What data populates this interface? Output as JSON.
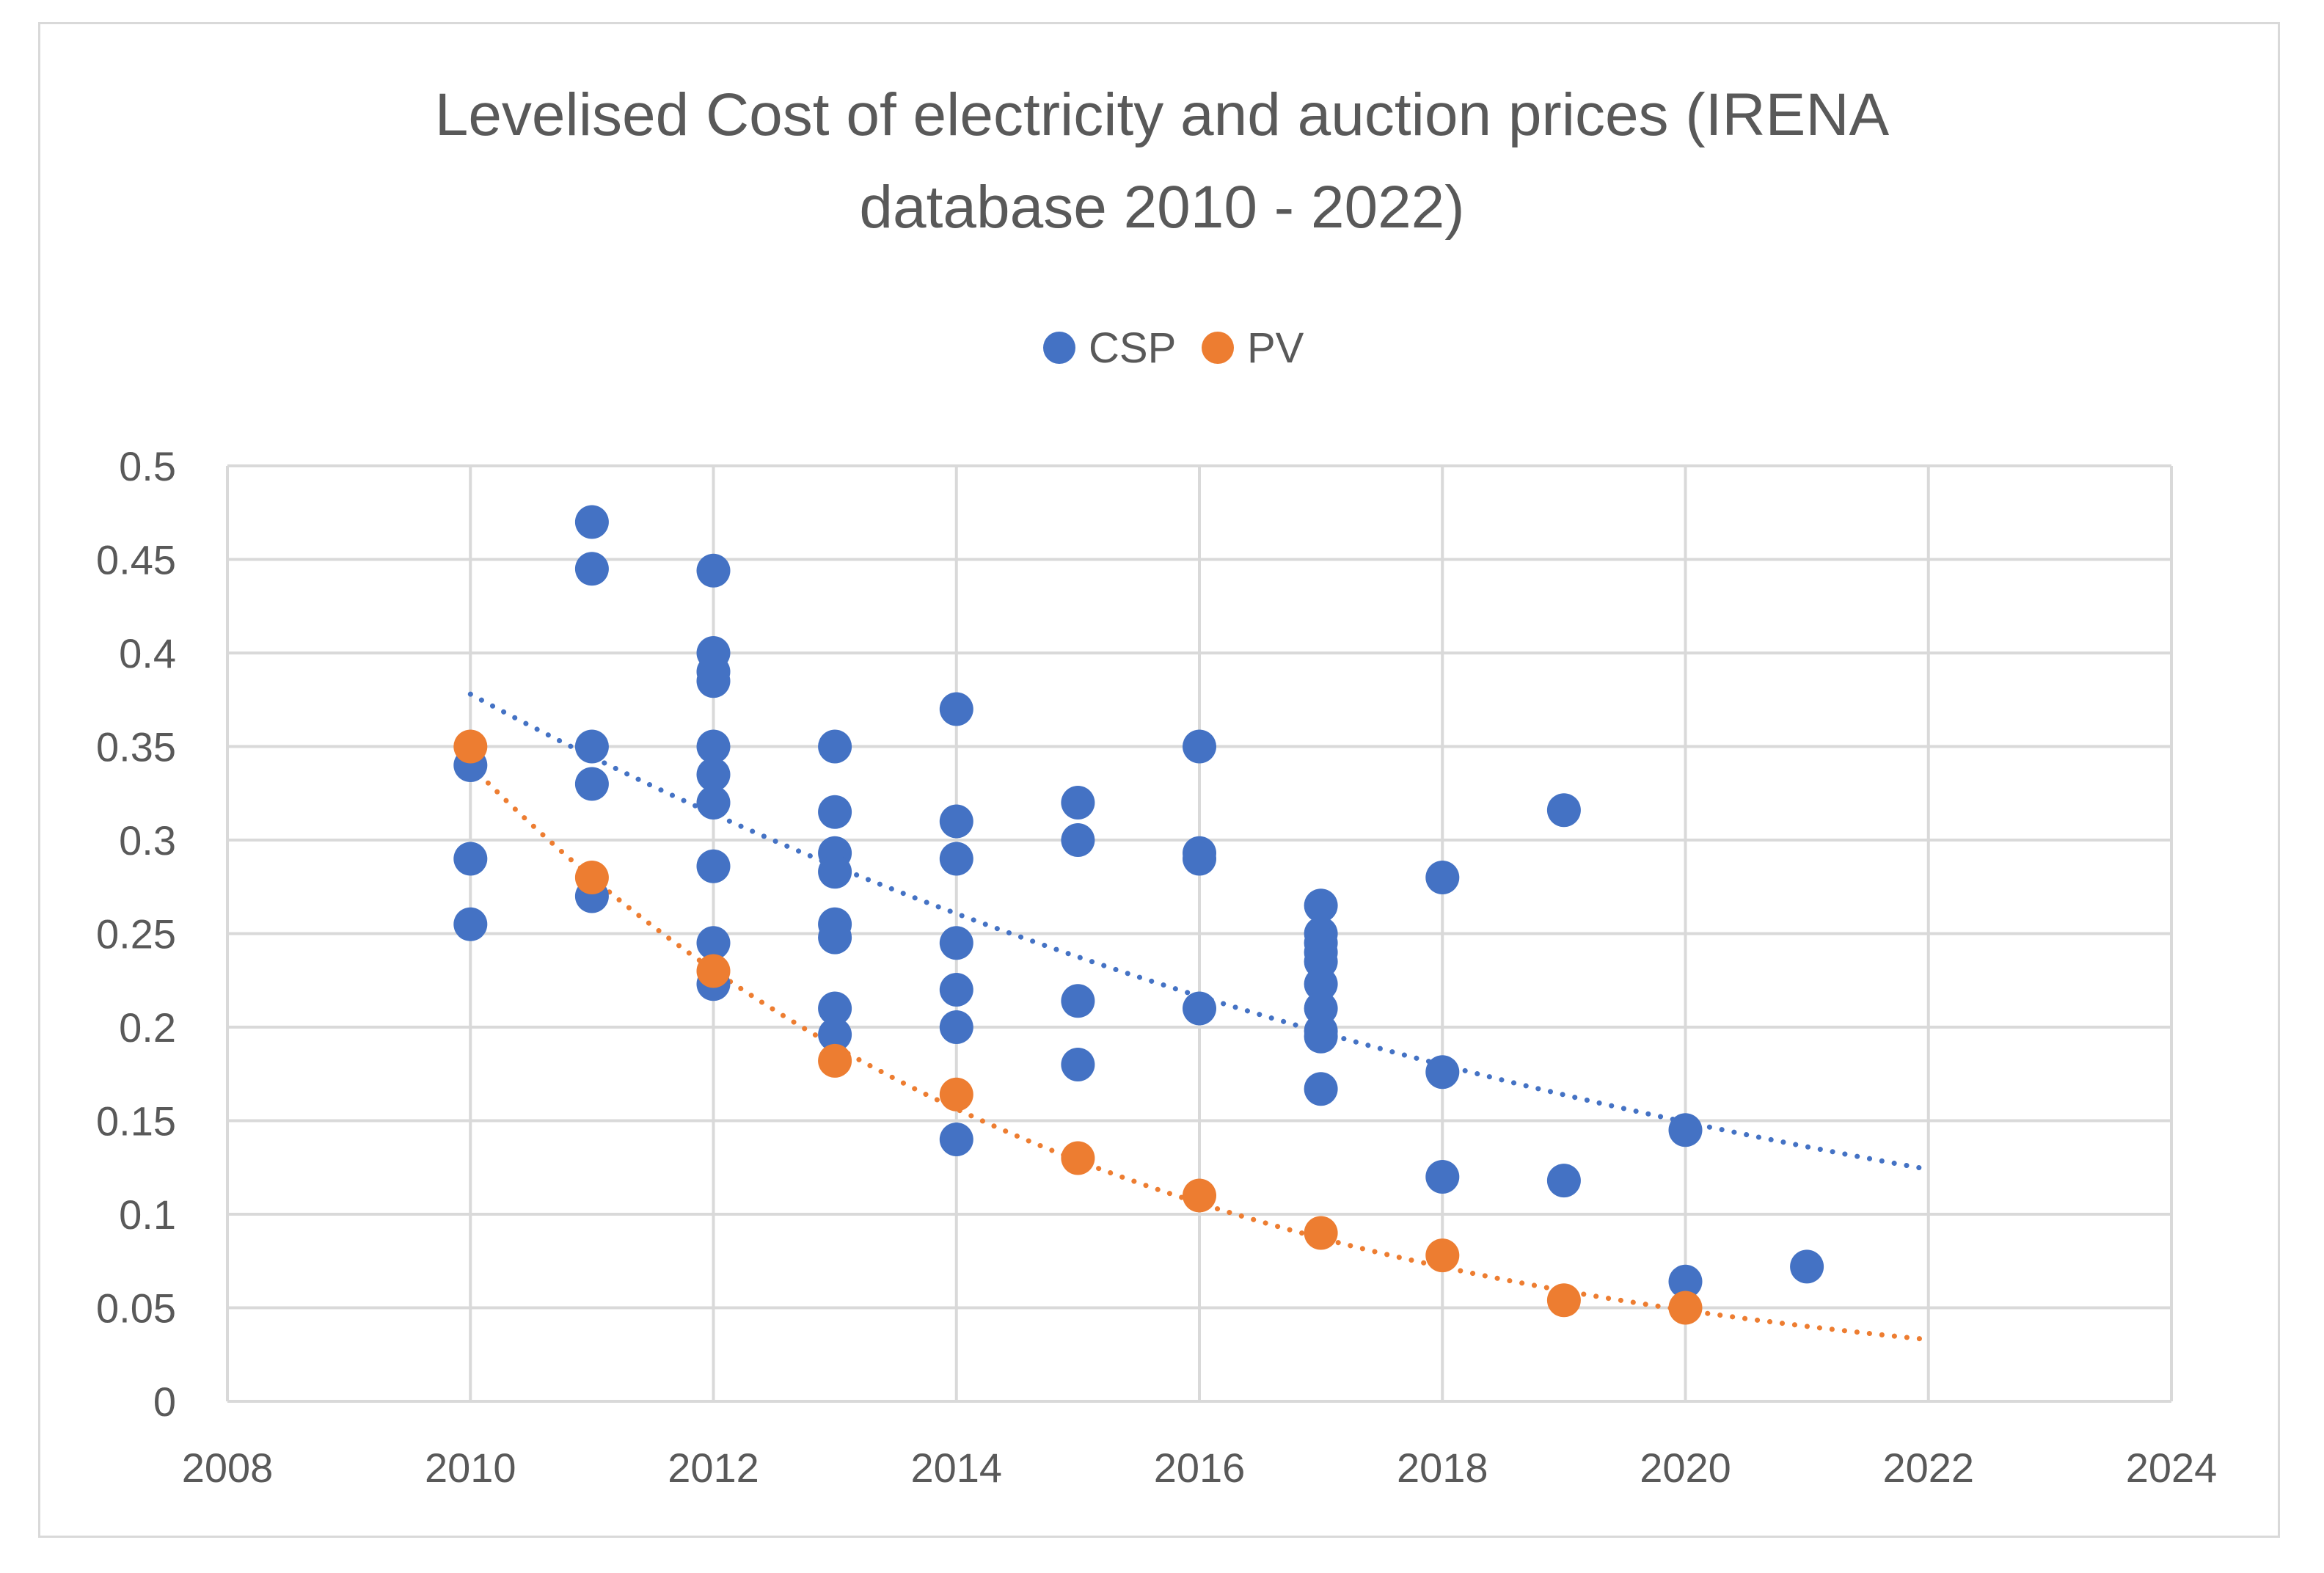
{
  "chart_data": {
    "type": "scatter",
    "title": "Levelised Cost of electricity and auction prices (IRENA database 2010 - 2022)",
    "title_lines": [
      "Levelised Cost of electricity and auction prices (IRENA",
      "database 2010 - 2022)"
    ],
    "xlabel": "",
    "ylabel": "",
    "xlim": [
      2008,
      2024
    ],
    "ylim": [
      0,
      0.5
    ],
    "x_ticks": [
      2008,
      2010,
      2012,
      2014,
      2016,
      2018,
      2020,
      2022,
      2024
    ],
    "y_ticks": [
      0,
      0.05,
      0.1,
      0.15,
      0.2,
      0.25,
      0.3,
      0.35,
      0.4,
      0.45,
      0.5
    ],
    "x_tick_labels": [
      "2008",
      "2010",
      "2012",
      "2014",
      "2016",
      "2018",
      "2020",
      "2022",
      "2024"
    ],
    "y_tick_labels": [
      "0",
      "0.05",
      "0.1",
      "0.15",
      "0.2",
      "0.25",
      "0.3",
      "0.35",
      "0.4",
      "0.45",
      "0.5"
    ],
    "grid": true,
    "legend_position": "top-center",
    "series": [
      {
        "name": "CSP",
        "color": "#4472c4",
        "points": [
          [
            2010,
            0.34
          ],
          [
            2010,
            0.29
          ],
          [
            2010,
            0.255
          ],
          [
            2011,
            0.47
          ],
          [
            2011,
            0.445
          ],
          [
            2011,
            0.35
          ],
          [
            2011,
            0.33
          ],
          [
            2011,
            0.27
          ],
          [
            2012,
            0.444
          ],
          [
            2012,
            0.4
          ],
          [
            2012,
            0.39
          ],
          [
            2012,
            0.385
          ],
          [
            2012,
            0.35
          ],
          [
            2012,
            0.335
          ],
          [
            2012,
            0.32
          ],
          [
            2012,
            0.286
          ],
          [
            2012,
            0.245
          ],
          [
            2012,
            0.223
          ],
          [
            2013,
            0.35
          ],
          [
            2013,
            0.315
          ],
          [
            2013,
            0.293
          ],
          [
            2013,
            0.283
          ],
          [
            2013,
            0.255
          ],
          [
            2013,
            0.248
          ],
          [
            2013,
            0.21
          ],
          [
            2013,
            0.196
          ],
          [
            2014,
            0.37
          ],
          [
            2014,
            0.31
          ],
          [
            2014,
            0.29
          ],
          [
            2014,
            0.245
          ],
          [
            2014,
            0.22
          ],
          [
            2014,
            0.2
          ],
          [
            2014,
            0.14
          ],
          [
            2015,
            0.32
          ],
          [
            2015,
            0.3
          ],
          [
            2015,
            0.214
          ],
          [
            2015,
            0.18
          ],
          [
            2016,
            0.35
          ],
          [
            2016,
            0.293
          ],
          [
            2016,
            0.29
          ],
          [
            2016,
            0.21
          ],
          [
            2017,
            0.265
          ],
          [
            2017,
            0.25
          ],
          [
            2017,
            0.245
          ],
          [
            2017,
            0.24
          ],
          [
            2017,
            0.235
          ],
          [
            2017,
            0.223
          ],
          [
            2017,
            0.21
          ],
          [
            2017,
            0.198
          ],
          [
            2017,
            0.195
          ],
          [
            2017,
            0.167
          ],
          [
            2018,
            0.28
          ],
          [
            2018,
            0.176
          ],
          [
            2018,
            0.12
          ],
          [
            2019,
            0.316
          ],
          [
            2019,
            0.118
          ],
          [
            2020,
            0.145
          ],
          [
            2020,
            0.064
          ],
          [
            2021,
            0.072
          ]
        ],
        "trendline": {
          "type": "exponential",
          "x_range": [
            2010,
            2022
          ],
          "start_value": 0.378,
          "end_value": 0.124,
          "style": "dotted"
        }
      },
      {
        "name": "PV",
        "color": "#ed7d31",
        "points": [
          [
            2010,
            0.35
          ],
          [
            2011,
            0.28
          ],
          [
            2012,
            0.23
          ],
          [
            2013,
            0.182
          ],
          [
            2014,
            0.164
          ],
          [
            2015,
            0.13
          ],
          [
            2016,
            0.11
          ],
          [
            2017,
            0.09
          ],
          [
            2018,
            0.078
          ],
          [
            2019,
            0.054
          ],
          [
            2020,
            0.05
          ]
        ],
        "trendline": {
          "type": "exponential",
          "x_range": [
            2010,
            2022
          ],
          "start_value": 0.34,
          "end_value": 0.033,
          "style": "dotted"
        }
      }
    ]
  }
}
